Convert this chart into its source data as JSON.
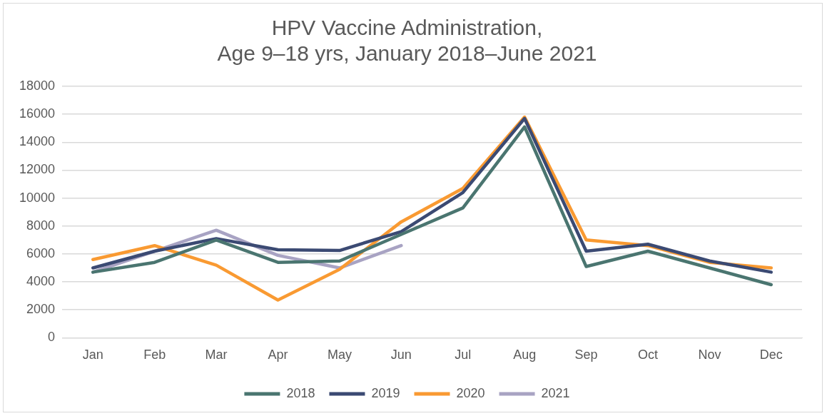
{
  "chart_data": {
    "type": "line",
    "title": "HPV Vaccine Administration, Age 9–18 yrs, January 2018–June 2021",
    "categories": [
      "Jan",
      "Feb",
      "Mar",
      "Apr",
      "May",
      "Jun",
      "Jul",
      "Aug",
      "Sep",
      "Oct",
      "Nov",
      "Dec"
    ],
    "series": [
      {
        "name": "2018",
        "color": "#4a7570",
        "values": [
          4700,
          5400,
          7000,
          5400,
          5500,
          7400,
          9300,
          15100,
          5100,
          6200,
          5000,
          3800
        ]
      },
      {
        "name": "2019",
        "color": "#3b4a73",
        "values": [
          5000,
          6200,
          7100,
          6300,
          6250,
          7600,
          10400,
          15700,
          6200,
          6700,
          5500,
          4700
        ]
      },
      {
        "name": "2020",
        "color": "#f99a32",
        "values": [
          5600,
          6600,
          5200,
          2700,
          4900,
          8300,
          10700,
          15800,
          7000,
          6600,
          5400,
          5000
        ]
      },
      {
        "name": "2021",
        "color": "#a8a3c3",
        "values": [
          4700,
          6200,
          7700,
          5900,
          5000,
          6600,
          null,
          null,
          null,
          null,
          null,
          null
        ]
      }
    ],
    "ylim": [
      0,
      18000
    ],
    "yticks": [
      0,
      2000,
      4000,
      6000,
      8000,
      10000,
      12000,
      14000,
      16000,
      18000
    ],
    "grid": "y",
    "legend": "bottom",
    "marker": "none",
    "line_style": "solid"
  }
}
